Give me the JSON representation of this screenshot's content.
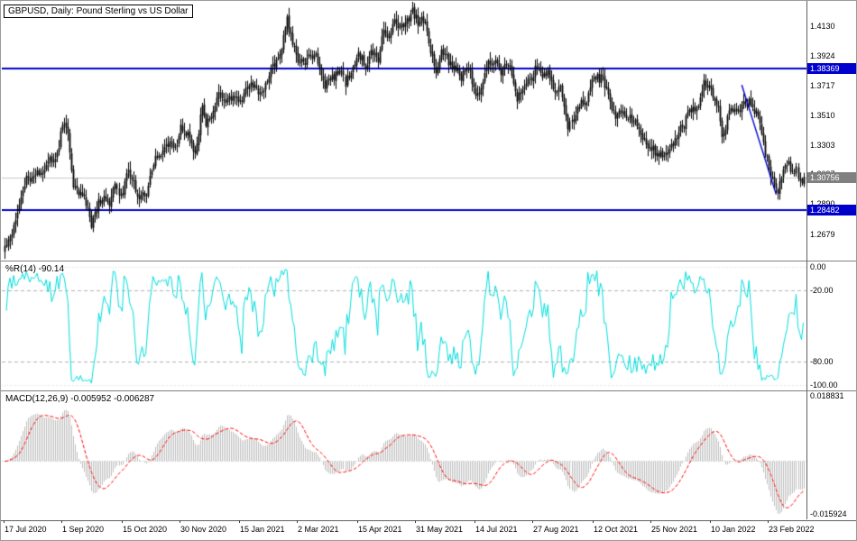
{
  "window": {
    "title": "GBPUSD, Daily:  Pound Sterling vs US Dollar"
  },
  "price_panel": {
    "label": "GBPUSD, Daily:  Pound Sterling vs US Dollar",
    "axis_ticks": [
      "1.4130",
      "1.3924",
      "1.3717",
      "1.3510",
      "1.3303",
      "1.3097",
      "1.2890",
      "1.2679"
    ],
    "axis_tick_values": [
      1.413,
      1.3924,
      1.3717,
      1.351,
      1.3303,
      1.3097,
      1.289,
      1.2679
    ],
    "resistance_badge": "1.38369",
    "current_badge": "1.30756",
    "support_badge": "1.28482"
  },
  "wpr_panel": {
    "label": "%R(14) -90.14",
    "axis_ticks": [
      "0.00",
      "-20.00",
      "-80.00",
      "-100.00"
    ],
    "axis_tick_values": [
      0,
      -20,
      -80,
      -100
    ]
  },
  "macd_panel": {
    "label": "MACD(12,26,9) -0.005952 -0.006287",
    "axis_ticks": [
      "0.018831",
      "-0.015924"
    ],
    "axis_tick_values": [
      0.018831,
      -0.015924
    ]
  },
  "x_axis": {
    "labels": [
      "17 Jul 2020",
      "1 Sep 2020",
      "15 Oct 2020",
      "30 Nov 2020",
      "15 Jan 2021",
      "2 Mar 2021",
      "15 Apr 2021",
      "31 May 2021",
      "14 Jul 2021",
      "27 Aug 2021",
      "12 Oct 2021",
      "25 Nov 2021",
      "10 Jan 2022",
      "23 Feb 2022"
    ],
    "bar_indices": [
      0,
      32,
      65,
      97,
      130,
      162,
      195,
      227,
      260,
      292,
      325,
      357,
      390,
      422
    ]
  },
  "colors": {
    "bar": "#000000",
    "level_line_blue": "#0000CD",
    "current_price_gray": "#808080",
    "wpr_cyan": "#00DCDC",
    "macd_histogram": "#BEBEBE",
    "macd_signal_red": "#FF0000"
  },
  "chart_data": [
    {
      "type": "ohlc-candle",
      "symbol": "GBPUSD",
      "timeframe": "Daily",
      "description": "Pound Sterling vs US Dollar",
      "bar_count": 442,
      "bar_color": "#000000",
      "ylim": [
        1.2495,
        1.43
      ],
      "y_ticks": [
        1.413,
        1.3924,
        1.3717,
        1.351,
        1.3303,
        1.3097,
        1.289,
        1.2679
      ],
      "last_price": 1.30756,
      "horizontal_lines": [
        {
          "price": 1.38369,
          "color": "#0000CD",
          "label": "1.38369"
        },
        {
          "price": 1.28482,
          "color": "#0000CD",
          "label": "1.28482"
        }
      ],
      "trendline": {
        "from_bar": 407,
        "from_price": 1.372,
        "to_bar": 426,
        "to_price": 1.2955,
        "color": "#0000CD"
      },
      "close_anchors": [
        [
          0,
          1.259
        ],
        [
          4,
          1.27
        ],
        [
          8,
          1.29
        ],
        [
          12,
          1.306
        ],
        [
          16,
          1.309
        ],
        [
          20,
          1.3105
        ],
        [
          24,
          1.32
        ],
        [
          28,
          1.318
        ],
        [
          30,
          1.33
        ],
        [
          32,
          1.346
        ],
        [
          35,
          1.339
        ],
        [
          38,
          1.3
        ],
        [
          42,
          1.297
        ],
        [
          45,
          1.289
        ],
        [
          48,
          1.274
        ],
        [
          52,
          1.2915
        ],
        [
          55,
          1.294
        ],
        [
          58,
          1.286
        ],
        [
          61,
          1.305
        ],
        [
          64,
          1.293
        ],
        [
          68,
          1.313
        ],
        [
          71,
          1.304
        ],
        [
          74,
          1.293
        ],
        [
          78,
          1.2975
        ],
        [
          83,
          1.32
        ],
        [
          88,
          1.327
        ],
        [
          91,
          1.332
        ],
        [
          94,
          1.327
        ],
        [
          97,
          1.342
        ],
        [
          101,
          1.337
        ],
        [
          105,
          1.323
        ],
        [
          109,
          1.357
        ],
        [
          111,
          1.345
        ],
        [
          115,
          1.352
        ],
        [
          118,
          1.3665
        ],
        [
          122,
          1.36
        ],
        [
          127,
          1.365
        ],
        [
          130,
          1.359
        ],
        [
          133,
          1.368
        ],
        [
          136,
          1.374
        ],
        [
          139,
          1.369
        ],
        [
          142,
          1.365
        ],
        [
          146,
          1.381
        ],
        [
          150,
          1.389
        ],
        [
          153,
          1.398
        ],
        [
          156,
          1.4175
        ],
        [
          159,
          1.3995
        ],
        [
          162,
          1.389
        ],
        [
          165,
          1.387
        ],
        [
          169,
          1.392
        ],
        [
          172,
          1.393
        ],
        [
          175,
          1.379
        ],
        [
          177,
          1.372
        ],
        [
          181,
          1.377
        ],
        [
          185,
          1.382
        ],
        [
          188,
          1.373
        ],
        [
          192,
          1.384
        ],
        [
          195,
          1.393
        ],
        [
          199,
          1.386
        ],
        [
          202,
          1.394
        ],
        [
          206,
          1.39
        ],
        [
          209,
          1.411
        ],
        [
          212,
          1.406
        ],
        [
          215,
          1.417
        ],
        [
          218,
          1.413
        ],
        [
          221,
          1.415
        ],
        [
          225,
          1.423
        ],
        [
          228,
          1.416
        ],
        [
          232,
          1.417
        ],
        [
          235,
          1.396
        ],
        [
          238,
          1.381
        ],
        [
          241,
          1.395
        ],
        [
          244,
          1.39
        ],
        [
          248,
          1.383
        ],
        [
          252,
          1.377
        ],
        [
          256,
          1.385
        ],
        [
          260,
          1.363
        ],
        [
          263,
          1.37
        ],
        [
          267,
          1.389
        ],
        [
          271,
          1.389
        ],
        [
          274,
          1.382
        ],
        [
          278,
          1.387
        ],
        [
          283,
          1.363
        ],
        [
          286,
          1.368
        ],
        [
          288,
          1.3755
        ],
        [
          291,
          1.375
        ],
        [
          293,
          1.383
        ],
        [
          297,
          1.379
        ],
        [
          300,
          1.381
        ],
        [
          304,
          1.366
        ],
        [
          307,
          1.3715
        ],
        [
          311,
          1.343
        ],
        [
          314,
          1.347
        ],
        [
          318,
          1.361
        ],
        [
          321,
          1.359
        ],
        [
          325,
          1.379
        ],
        [
          328,
          1.376
        ],
        [
          330,
          1.377
        ],
        [
          333,
          1.364
        ],
        [
          337,
          1.349
        ],
        [
          340,
          1.3555
        ],
        [
          343,
          1.35
        ],
        [
          347,
          1.348
        ],
        [
          350,
          1.34
        ],
        [
          353,
          1.332
        ],
        [
          355,
          1.329
        ],
        [
          358,
          1.327
        ],
        [
          361,
          1.322
        ],
        [
          364,
          1.324
        ],
        [
          366,
          1.326
        ],
        [
          369,
          1.331
        ],
        [
          372,
          1.341
        ],
        [
          375,
          1.344
        ],
        [
          377,
          1.353
        ],
        [
          380,
          1.354
        ],
        [
          383,
          1.359
        ],
        [
          386,
          1.373
        ],
        [
          389,
          1.37
        ],
        [
          392,
          1.359
        ],
        [
          394,
          1.355
        ],
        [
          396,
          1.338
        ],
        [
          398,
          1.34
        ],
        [
          400,
          1.357
        ],
        [
          403,
          1.353
        ],
        [
          406,
          1.356
        ],
        [
          409,
          1.359
        ],
        [
          411,
          1.361
        ],
        [
          413,
          1.356
        ],
        [
          415,
          1.354
        ],
        [
          417,
          1.344
        ],
        [
          419,
          1.332
        ],
        [
          421,
          1.32
        ],
        [
          423,
          1.31
        ],
        [
          425,
          1.303
        ],
        [
          427,
          1.2985
        ],
        [
          429,
          1.306
        ],
        [
          431,
          1.317
        ],
        [
          433,
          1.316
        ],
        [
          435,
          1.309
        ],
        [
          437,
          1.313
        ],
        [
          439,
          1.305
        ],
        [
          441,
          1.3078
        ]
      ]
    },
    {
      "type": "line",
      "name": "Williams %R",
      "period": 14,
      "last_value": -90.14,
      "ylim": [
        -100,
        0
      ],
      "levels_dashed": [
        -20,
        -80
      ],
      "levels_edge": [
        0,
        -100
      ],
      "line_color": "#00DCDC"
    },
    {
      "type": "macd",
      "name": "MACD",
      "fast_ema": 12,
      "slow_ema": 26,
      "signal_period": 9,
      "last_macd": -0.005952,
      "last_signal": -0.006287,
      "ylim": [
        -0.015924,
        0.018831
      ],
      "histogram_color": "#BEBEBE",
      "signal_color": "#FF0000"
    }
  ]
}
